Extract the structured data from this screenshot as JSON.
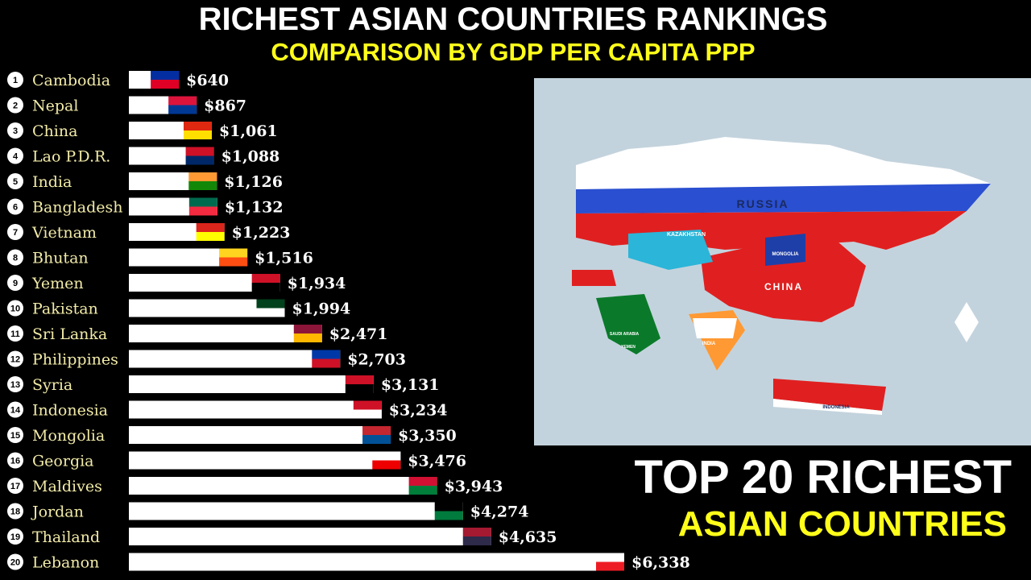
{
  "chart_data": {
    "type": "bar",
    "orientation": "horizontal",
    "title": "RICHEST ASIAN COUNTRIES RANKINGS",
    "subtitle": "COMPARISON BY GDP PER CAPITA PPP",
    "ranks": [
      1,
      2,
      3,
      4,
      5,
      6,
      7,
      8,
      9,
      10,
      11,
      12,
      13,
      14,
      15,
      16,
      17,
      18,
      19,
      20
    ],
    "categories": [
      "Cambodia",
      "Nepal",
      "China",
      "Lao P.D.R.",
      "India",
      "Bangladesh",
      "Vietnam",
      "Bhutan",
      "Yemen",
      "Pakistan",
      "Sri Lanka",
      "Philippines",
      "Syria",
      "Indonesia",
      "Mongolia",
      "Georgia",
      "Maldives",
      "Jordan",
      "Thailand",
      "Lebanon"
    ],
    "values": [
      640,
      867,
      1061,
      1088,
      1126,
      1132,
      1223,
      1516,
      1934,
      1994,
      2471,
      2703,
      3131,
      3234,
      3350,
      3476,
      3943,
      4274,
      4635,
      6338
    ],
    "value_labels": [
      "$640",
      "$867",
      "$1,061",
      "$1,088",
      "$1,126",
      "$1,132",
      "$1,223",
      "$1,516",
      "$1,934",
      "$1,994",
      "$2,471",
      "$2,703",
      "$3,131",
      "$3,234",
      "$3,350",
      "$3,476",
      "$3,943",
      "$4,274",
      "$4,635",
      "$6,338"
    ],
    "color": "#ffffff"
  },
  "headline": {
    "line1": "TOP 20 RICHEST",
    "line2": "ASIAN COUNTRIES"
  },
  "map": {
    "labels": [
      "RUSSIA",
      "CHINA",
      "KAZAKHSTAN",
      "MONGOLIA",
      "INDIA",
      "INDONESIA",
      "SAUDI ARABIA",
      "YEMEN"
    ]
  }
}
